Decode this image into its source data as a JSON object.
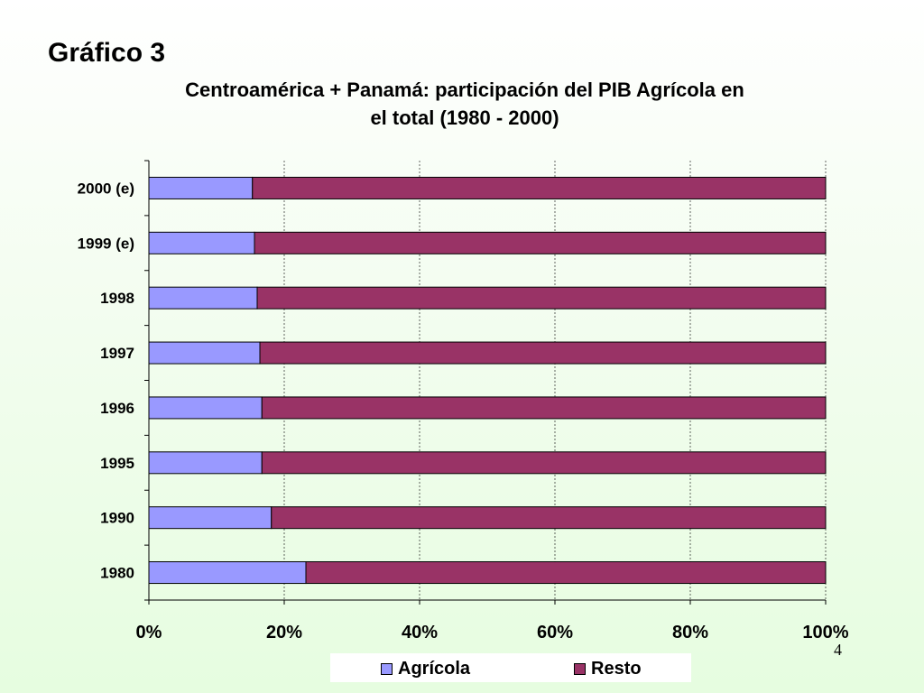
{
  "slide": {
    "title": "Gráfico 3",
    "page_number": "4"
  },
  "chart_data": {
    "type": "bar",
    "orientation": "horizontal",
    "stacked": "percent",
    "title": "Centroamérica + Panamá: participación del PIB Agrícola en el total (1980 - 2000)",
    "title_lines": [
      "Centroamérica + Panamá: participación del PIB Agrícola en",
      "el total (1980 - 2000)"
    ],
    "categories": [
      "2000 (e)",
      "1999 (e)",
      "1998",
      "1997",
      "1996",
      "1995",
      "1990",
      "1980"
    ],
    "series": [
      {
        "name": "Agrícola",
        "color": "#9999ff",
        "values": [
          15.3,
          15.6,
          16.0,
          16.4,
          16.7,
          16.7,
          18.1,
          23.2
        ]
      },
      {
        "name": "Resto",
        "color": "#993366",
        "values": [
          84.7,
          84.4,
          84.0,
          83.6,
          83.3,
          83.3,
          81.9,
          76.8
        ]
      }
    ],
    "x_ticks": [
      "0%",
      "20%",
      "40%",
      "60%",
      "80%",
      "100%"
    ],
    "xlim": [
      0,
      100
    ],
    "grid": true,
    "legend": "bottom"
  }
}
